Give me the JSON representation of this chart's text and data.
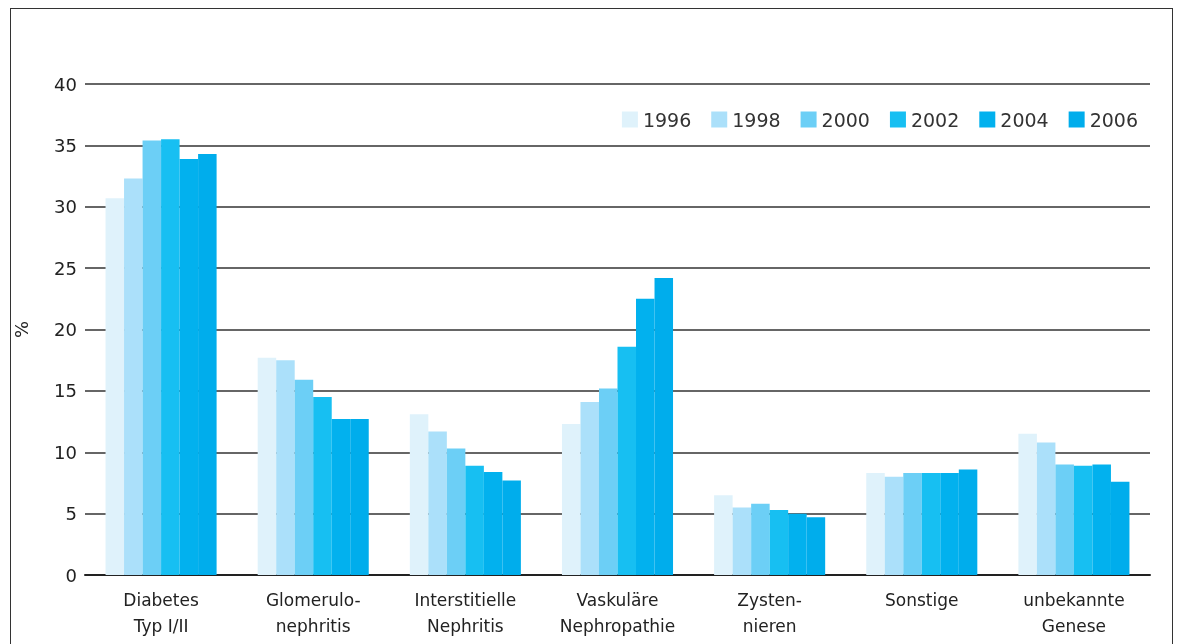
{
  "chart_data": {
    "type": "bar",
    "ylabel": "%",
    "categories": [
      "Diabetes\nTyp I/II",
      "Glomerulo-\nnephritis",
      "Interstitielle\nNephritis",
      "Vaskuläre\nNephropathie",
      "Zysten-\nnieren",
      "Sonstige",
      "unbekannte\nGenese"
    ],
    "series": [
      {
        "name": "1996",
        "color": "#dff2fb",
        "values": [
          30.7,
          17.7,
          13.1,
          12.3,
          6.5,
          8.3,
          11.5
        ]
      },
      {
        "name": "1998",
        "color": "#abe0fa",
        "values": [
          32.3,
          17.5,
          11.7,
          14.1,
          5.5,
          8.0,
          10.8
        ]
      },
      {
        "name": "2000",
        "color": "#6ccff6",
        "values": [
          35.4,
          15.9,
          10.3,
          15.2,
          5.8,
          8.3,
          9.0
        ]
      },
      {
        "name": "2002",
        "color": "#17bff2",
        "values": [
          35.5,
          14.5,
          8.9,
          18.6,
          5.3,
          8.3,
          8.9
        ]
      },
      {
        "name": "2004",
        "color": "#02b1ee",
        "values": [
          33.9,
          12.7,
          8.4,
          22.5,
          5.0,
          8.3,
          9.0
        ]
      },
      {
        "name": "2006",
        "color": "#00adec",
        "values": [
          34.3,
          12.7,
          7.7,
          24.2,
          4.7,
          8.6,
          7.6
        ]
      }
    ],
    "ylim": [
      0,
      40
    ],
    "yticks": [
      0,
      5,
      10,
      15,
      20,
      25,
      30,
      35,
      40
    ],
    "grid": "y",
    "legend": "top right"
  }
}
